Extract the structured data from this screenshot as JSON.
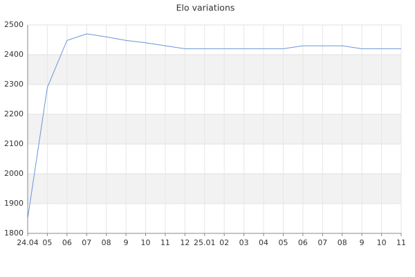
{
  "chart_data": {
    "type": "line",
    "title": "Elo variations",
    "categories": [
      "24.04",
      "05",
      "06",
      "07",
      "08",
      "9",
      "10",
      "11",
      "12",
      "25.01",
      "02",
      "03",
      "04",
      "05",
      "06",
      "07",
      "08",
      "9",
      "10",
      "11"
    ],
    "series": [
      {
        "name": "Elo",
        "color": "#6a93d6",
        "values": [
          1850,
          2290,
          2448,
          2470,
          2460,
          2448,
          2440,
          2430,
          2420,
          2420,
          2420,
          2420,
          2420,
          2420,
          2430,
          2430,
          2430,
          2420,
          2420,
          2420
        ]
      }
    ],
    "ylim": [
      1800,
      2500
    ],
    "yticks": [
      1800,
      1900,
      2000,
      2100,
      2200,
      2300,
      2400,
      2500
    ],
    "grid": true
  }
}
